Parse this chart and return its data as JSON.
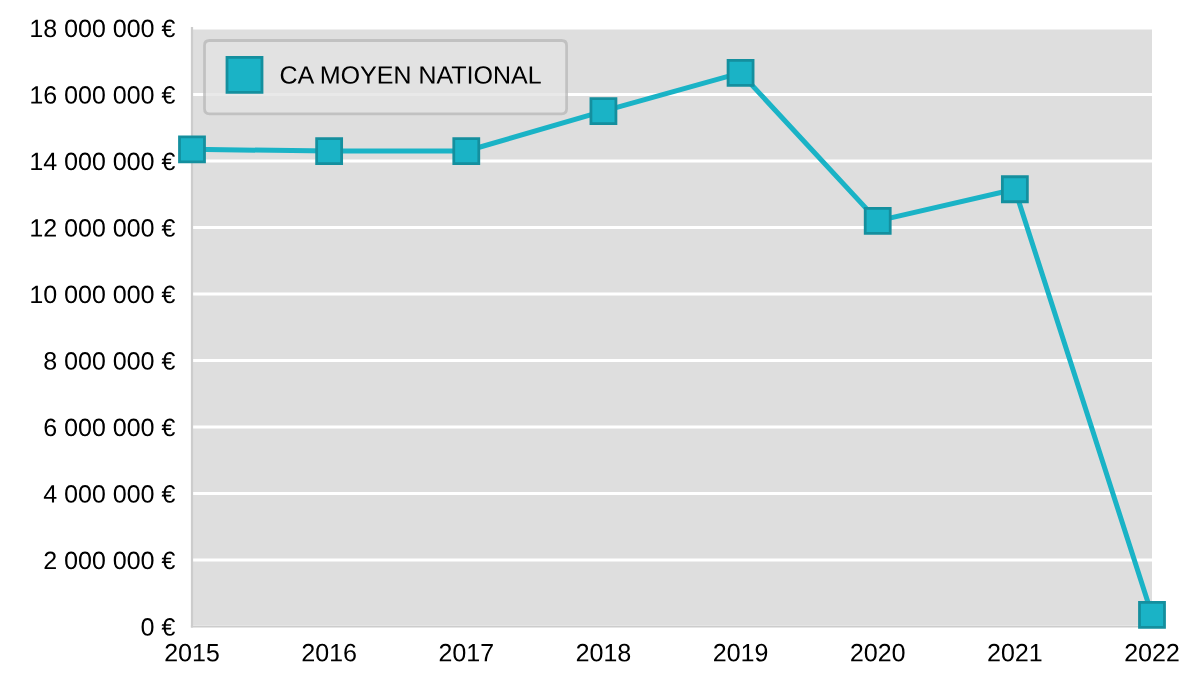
{
  "chart_data": {
    "type": "line",
    "x": [
      2015,
      2016,
      2017,
      2018,
      2019,
      2020,
      2021,
      2022
    ],
    "series": [
      {
        "name": "CA MOYEN NATIONAL",
        "color": "#1ab3c6",
        "values": [
          14350000,
          14300000,
          14300000,
          15500000,
          16650000,
          12200000,
          13150000,
          350000
        ]
      }
    ],
    "xlim": [
      2015,
      2022
    ],
    "xticks": [
      2015,
      2016,
      2017,
      2018,
      2019,
      2020,
      2021,
      2022
    ],
    "ylim": [
      0,
      18000000
    ],
    "yticks": [
      {
        "value": 0,
        "label": "0 €"
      },
      {
        "value": 2000000,
        "label": "2 000 000 €"
      },
      {
        "value": 4000000,
        "label": "4 000 000 €"
      },
      {
        "value": 6000000,
        "label": "6 000 000 €"
      },
      {
        "value": 8000000,
        "label": "8 000 000 €"
      },
      {
        "value": 10000000,
        "label": "10 000 000 €"
      },
      {
        "value": 12000000,
        "label": "12 000 000 €"
      },
      {
        "value": 14000000,
        "label": "14 000 000 €"
      },
      {
        "value": 16000000,
        "label": "16 000 000 €"
      },
      {
        "value": 18000000,
        "label": "18 000 000 €"
      }
    ],
    "grid": "y",
    "legend": "top left",
    "marker": "square",
    "line_style": "solid"
  }
}
